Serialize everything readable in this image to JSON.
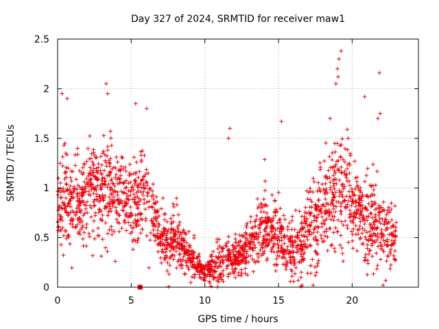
{
  "chart_data": {
    "type": "scatter",
    "title": "Day 327 of 2024, SRMTID for receiver maw1",
    "xlabel": "GPS time / hours",
    "ylabel": "SRMTID / TECUs",
    "xlim": [
      0,
      24.5
    ],
    "ylim": [
      0,
      2.5
    ],
    "xticks": [
      0,
      5,
      10,
      15,
      20
    ],
    "yticks": [
      0,
      0.5,
      1,
      1.5,
      2,
      2.5
    ],
    "ytick_labels": [
      "0",
      "0.5",
      "1",
      "1.5",
      "2",
      "2.5"
    ],
    "grid": true,
    "marker": "plus",
    "color": "#e8000b",
    "x_range_data": [
      0,
      23
    ],
    "profile": {
      "x": [
        0,
        0.5,
        1,
        1.5,
        2,
        2.5,
        3,
        3.5,
        4,
        4.5,
        5,
        5.5,
        6,
        6.5,
        7,
        7.5,
        8,
        8.5,
        9,
        9.5,
        10,
        10.5,
        11,
        11.5,
        12,
        12.5,
        13,
        13.5,
        14,
        14.5,
        15,
        15.5,
        16,
        16.5,
        17,
        17.5,
        18,
        18.5,
        19,
        19.5,
        20,
        20.5,
        21,
        21.5,
        22,
        22.5,
        23
      ],
      "center": [
        0.85,
        0.9,
        0.8,
        0.85,
        0.95,
        1.0,
        1.0,
        1.05,
        0.95,
        0.9,
        0.85,
        0.85,
        0.9,
        0.75,
        0.5,
        0.45,
        0.5,
        0.4,
        0.3,
        0.22,
        0.15,
        0.2,
        0.25,
        0.3,
        0.3,
        0.35,
        0.4,
        0.5,
        0.6,
        0.55,
        0.5,
        0.45,
        0.35,
        0.45,
        0.6,
        0.7,
        0.8,
        0.9,
        1.0,
        1.0,
        0.8,
        0.75,
        0.7,
        0.7,
        0.6,
        0.55,
        0.5
      ],
      "spread": [
        0.45,
        0.5,
        0.45,
        0.45,
        0.45,
        0.45,
        0.5,
        0.55,
        0.45,
        0.45,
        0.45,
        0.45,
        0.4,
        0.4,
        0.3,
        0.3,
        0.3,
        0.25,
        0.2,
        0.12,
        0.08,
        0.15,
        0.2,
        0.2,
        0.2,
        0.22,
        0.25,
        0.35,
        0.4,
        0.35,
        0.35,
        0.3,
        0.3,
        0.35,
        0.4,
        0.45,
        0.45,
        0.5,
        0.6,
        0.5,
        0.4,
        0.4,
        0.45,
        0.45,
        0.35,
        0.3,
        0.25
      ]
    },
    "count": 2200,
    "outliers": [
      {
        "x": 3.3,
        "y": 2.05
      },
      {
        "x": 3.4,
        "y": 1.95
      },
      {
        "x": 0.3,
        "y": 1.95
      },
      {
        "x": 0.65,
        "y": 1.9
      },
      {
        "x": 5.3,
        "y": 1.85
      },
      {
        "x": 6.05,
        "y": 1.8
      },
      {
        "x": 11.7,
        "y": 1.6
      },
      {
        "x": 11.6,
        "y": 1.5
      },
      {
        "x": 15.2,
        "y": 1.67
      },
      {
        "x": 19.0,
        "y": 2.2
      },
      {
        "x": 19.1,
        "y": 2.3
      },
      {
        "x": 19.25,
        "y": 2.38
      },
      {
        "x": 18.9,
        "y": 2.05
      },
      {
        "x": 19.05,
        "y": 2.12
      },
      {
        "x": 20.85,
        "y": 1.92
      },
      {
        "x": 21.85,
        "y": 2.16
      },
      {
        "x": 21.9,
        "y": 1.75
      },
      {
        "x": 21.75,
        "y": 1.7
      },
      {
        "x": 18.5,
        "y": 1.7
      },
      {
        "x": 16.6,
        "y": 0.02
      },
      {
        "x": 17.35,
        "y": 0.02
      },
      {
        "x": 22.1,
        "y": 0.02
      }
    ],
    "square_marker": {
      "x": 5.6,
      "y": 0.0
    }
  }
}
